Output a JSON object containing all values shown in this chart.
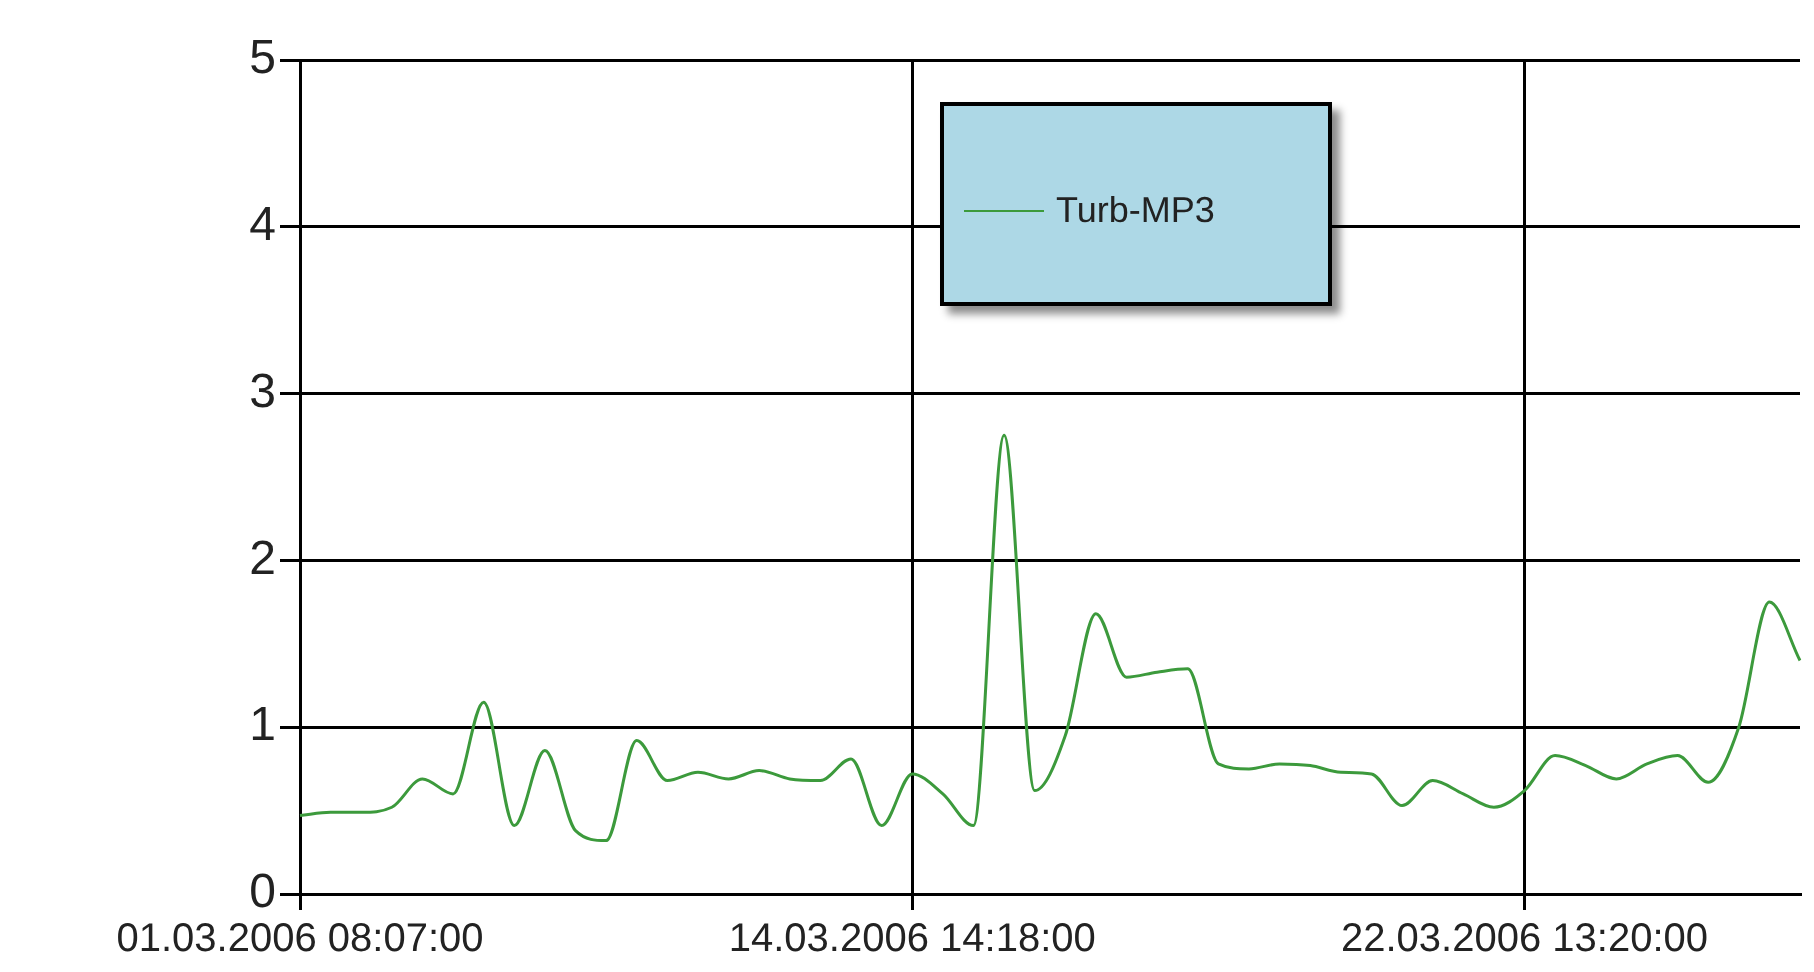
{
  "chart_data": {
    "type": "line",
    "categories": [
      "01.03.2006 08:07:00",
      null,
      null,
      null,
      null,
      null,
      null,
      null,
      null,
      null,
      null,
      null,
      null,
      null,
      null,
      null,
      null,
      null,
      null,
      null,
      "14.03.2006 14:18:00",
      null,
      null,
      null,
      null,
      null,
      null,
      null,
      null,
      null,
      null,
      null,
      null,
      null,
      null,
      null,
      null,
      null,
      null,
      null,
      "22.03.2006 13:20:00",
      null,
      null,
      null,
      null,
      null,
      null,
      null,
      null,
      null
    ],
    "series": [
      {
        "name": "Turb-MP3",
        "color": "#3c9a3c",
        "values": [
          0.47,
          0.49,
          0.49,
          0.52,
          0.69,
          0.6,
          1.15,
          0.41,
          0.86,
          0.38,
          0.32,
          0.92,
          0.68,
          0.73,
          0.69,
          0.74,
          0.69,
          0.68,
          0.81,
          0.41,
          0.72,
          0.6,
          0.41,
          2.75,
          0.62,
          0.95,
          1.68,
          1.3,
          1.33,
          1.35,
          0.78,
          0.75,
          0.78,
          0.77,
          0.73,
          0.72,
          0.53,
          0.68,
          0.6,
          0.52,
          0.62,
          0.83,
          0.77,
          0.69,
          0.78,
          0.83,
          0.67,
          1.0,
          1.75,
          1.4
        ]
      }
    ],
    "ylim": [
      0,
      5
    ],
    "yticks": [
      0,
      1,
      2,
      3,
      4,
      5
    ],
    "grid": true,
    "legend": "top",
    "marker": "none"
  }
}
